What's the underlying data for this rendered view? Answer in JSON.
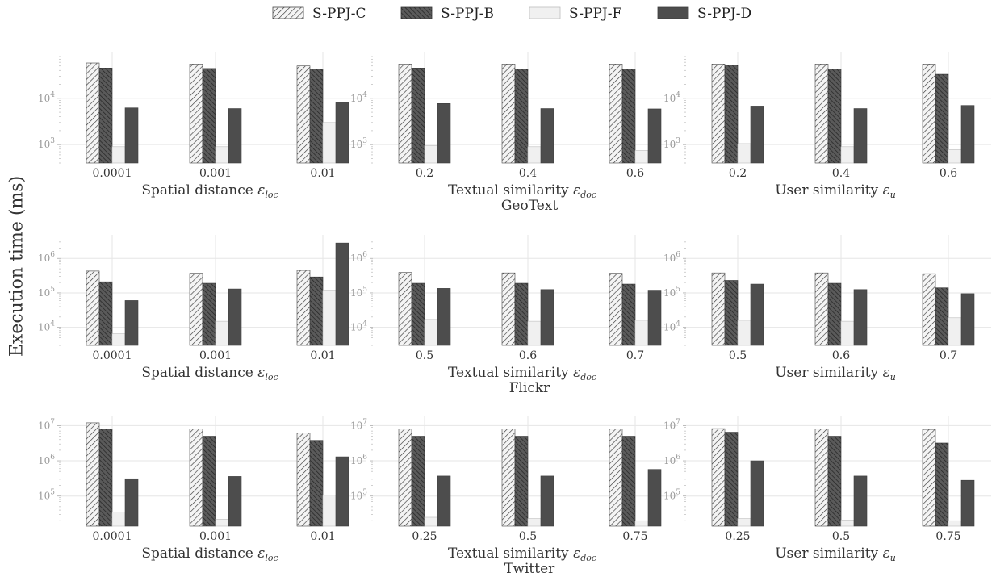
{
  "y_axis_label": "Execution time (ms)",
  "legend": [
    {
      "name": "S-PPJ-C",
      "pattern": "light-hatch"
    },
    {
      "name": "S-PPJ-B",
      "pattern": "dark-hatch"
    },
    {
      "name": "S-PPJ-F",
      "pattern": "light-fill"
    },
    {
      "name": "S-PPJ-D",
      "pattern": "dark-fill"
    }
  ],
  "colors": {
    "s_ppj_c": "#f2f2f2",
    "s_ppj_b": "#555555",
    "s_ppj_f": "#f0f0f0",
    "s_ppj_d": "#4d4d4d",
    "grid": "#e6e6e6",
    "tick_text": "#999999",
    "label_text": "#333333"
  },
  "chart_data": [
    {
      "type": "bar",
      "dataset": "GeoText",
      "xlabel": "Spatial distance ε_loc",
      "xlabel_parts": [
        "Spatial distance ",
        "ε",
        "loc"
      ],
      "yscale": "log",
      "ylim": [
        400,
        80000
      ],
      "yticks": [
        {
          "v": 1000,
          "b": "10",
          "e": "3"
        },
        {
          "v": 10000,
          "b": "10",
          "e": "4"
        }
      ],
      "categories": [
        "0.0001",
        "0.001",
        "0.01"
      ],
      "series": [
        {
          "name": "S-PPJ-C",
          "values": [
            58000,
            55000,
            50000
          ]
        },
        {
          "name": "S-PPJ-B",
          "values": [
            45000,
            44000,
            43000
          ]
        },
        {
          "name": "S-PPJ-F",
          "values": [
            900,
            900,
            3000
          ]
        },
        {
          "name": "S-PPJ-D",
          "values": [
            6200,
            6000,
            8000
          ]
        }
      ]
    },
    {
      "type": "bar",
      "dataset": "GeoText",
      "xlabel": "Textual similarity ε_doc",
      "xlabel_parts": [
        "Textual similarity ",
        "ε",
        "doc"
      ],
      "yscale": "log",
      "ylim": [
        400,
        80000
      ],
      "yticks": [
        {
          "v": 1000,
          "b": "10",
          "e": "3"
        },
        {
          "v": 10000,
          "b": "10",
          "e": "4"
        }
      ],
      "categories": [
        "0.2",
        "0.4",
        "0.6"
      ],
      "series": [
        {
          "name": "S-PPJ-C",
          "values": [
            55000,
            55000,
            55000
          ]
        },
        {
          "name": "S-PPJ-B",
          "values": [
            45000,
            43000,
            43000
          ]
        },
        {
          "name": "S-PPJ-F",
          "values": [
            950,
            900,
            750
          ]
        },
        {
          "name": "S-PPJ-D",
          "values": [
            7700,
            6000,
            5900
          ]
        }
      ]
    },
    {
      "type": "bar",
      "dataset": "GeoText",
      "xlabel": "User similarity ε_u",
      "xlabel_parts": [
        "User similarity ",
        "ε",
        "u"
      ],
      "yscale": "log",
      "ylim": [
        400,
        80000
      ],
      "yticks": [
        {
          "v": 1000,
          "b": "10",
          "e": "3"
        },
        {
          "v": 10000,
          "b": "10",
          "e": "4"
        }
      ],
      "categories": [
        "0.2",
        "0.4",
        "0.6"
      ],
      "series": [
        {
          "name": "S-PPJ-C",
          "values": [
            55000,
            55000,
            55000
          ]
        },
        {
          "name": "S-PPJ-B",
          "values": [
            52000,
            43000,
            33000
          ]
        },
        {
          "name": "S-PPJ-F",
          "values": [
            1050,
            900,
            780
          ]
        },
        {
          "name": "S-PPJ-D",
          "values": [
            6800,
            6000,
            7000
          ]
        }
      ]
    },
    {
      "type": "bar",
      "dataset": "Flickr",
      "xlabel": "Spatial distance ε_loc",
      "xlabel_parts": [
        "Spatial distance ",
        "ε",
        "loc"
      ],
      "yscale": "log",
      "ylim": [
        3000,
        3500000
      ],
      "yticks": [
        {
          "v": 10000,
          "b": "10",
          "e": "4"
        },
        {
          "v": 100000,
          "b": "10",
          "e": "5"
        },
        {
          "v": 1000000,
          "b": "10",
          "e": "6"
        }
      ],
      "categories": [
        "0.0001",
        "0.001",
        "0.01"
      ],
      "series": [
        {
          "name": "S-PPJ-C",
          "values": [
            430000,
            370000,
            450000
          ]
        },
        {
          "name": "S-PPJ-B",
          "values": [
            210000,
            190000,
            290000
          ]
        },
        {
          "name": "S-PPJ-F",
          "values": [
            6500,
            15000,
            120000
          ]
        },
        {
          "name": "S-PPJ-D",
          "values": [
            60000,
            130000,
            2800000
          ]
        }
      ]
    },
    {
      "type": "bar",
      "dataset": "Flickr",
      "xlabel": "Textual similarity ε_doc",
      "xlabel_parts": [
        "Textual similarity ",
        "ε",
        "doc"
      ],
      "yscale": "log",
      "ylim": [
        3000,
        3500000
      ],
      "yticks": [
        {
          "v": 10000,
          "b": "10",
          "e": "4"
        },
        {
          "v": 100000,
          "b": "10",
          "e": "5"
        },
        {
          "v": 1000000,
          "b": "10",
          "e": "6"
        }
      ],
      "categories": [
        "0.5",
        "0.6",
        "0.7"
      ],
      "series": [
        {
          "name": "S-PPJ-C",
          "values": [
            390000,
            380000,
            370000
          ]
        },
        {
          "name": "S-PPJ-B",
          "values": [
            190000,
            190000,
            180000
          ]
        },
        {
          "name": "S-PPJ-F",
          "values": [
            17000,
            15000,
            16000
          ]
        },
        {
          "name": "S-PPJ-D",
          "values": [
            135000,
            125000,
            120000
          ]
        }
      ]
    },
    {
      "type": "bar",
      "dataset": "Flickr",
      "xlabel": "User similarity ε_u",
      "xlabel_parts": [
        "User similarity ",
        "ε",
        "u"
      ],
      "yscale": "log",
      "ylim": [
        3000,
        3500000
      ],
      "yticks": [
        {
          "v": 10000,
          "b": "10",
          "e": "4"
        },
        {
          "v": 100000,
          "b": "10",
          "e": "5"
        },
        {
          "v": 1000000,
          "b": "10",
          "e": "6"
        }
      ],
      "categories": [
        "0.5",
        "0.6",
        "0.7"
      ],
      "series": [
        {
          "name": "S-PPJ-C",
          "values": [
            380000,
            380000,
            360000
          ]
        },
        {
          "name": "S-PPJ-B",
          "values": [
            230000,
            190000,
            140000
          ]
        },
        {
          "name": "S-PPJ-F",
          "values": [
            16000,
            15000,
            19000
          ]
        },
        {
          "name": "S-PPJ-D",
          "values": [
            180000,
            125000,
            95000
          ]
        }
      ]
    },
    {
      "type": "bar",
      "dataset": "Twitter",
      "xlabel": "Spatial distance ε_loc",
      "xlabel_parts": [
        "Spatial distance ",
        "ε",
        "loc"
      ],
      "yscale": "log",
      "ylim": [
        14000,
        14000000
      ],
      "yticks": [
        {
          "v": 100000,
          "b": "10",
          "e": "5"
        },
        {
          "v": 1000000,
          "b": "10",
          "e": "6"
        },
        {
          "v": 10000000,
          "b": "10",
          "e": "7"
        }
      ],
      "categories": [
        "0.0001",
        "0.001",
        "0.01"
      ],
      "series": [
        {
          "name": "S-PPJ-C",
          "values": [
            12000000,
            8000000,
            6200000
          ]
        },
        {
          "name": "S-PPJ-B",
          "values": [
            8000000,
            5000000,
            3800000
          ]
        },
        {
          "name": "S-PPJ-F",
          "values": [
            35000,
            22000,
            105000
          ]
        },
        {
          "name": "S-PPJ-D",
          "values": [
            310000,
            360000,
            1300000
          ]
        }
      ]
    },
    {
      "type": "bar",
      "dataset": "Twitter",
      "xlabel": "Textual similarity ε_doc",
      "xlabel_parts": [
        "Textual similarity ",
        "ε",
        "doc"
      ],
      "yscale": "log",
      "ylim": [
        14000,
        14000000
      ],
      "yticks": [
        {
          "v": 100000,
          "b": "10",
          "e": "5"
        },
        {
          "v": 1000000,
          "b": "10",
          "e": "6"
        },
        {
          "v": 10000000,
          "b": "10",
          "e": "7"
        }
      ],
      "categories": [
        "0.25",
        "0.5",
        "0.75"
      ],
      "series": [
        {
          "name": "S-PPJ-C",
          "values": [
            8000000,
            8000000,
            8000000
          ]
        },
        {
          "name": "S-PPJ-B",
          "values": [
            5000000,
            5000000,
            5000000
          ]
        },
        {
          "name": "S-PPJ-F",
          "values": [
            25000,
            23000,
            20000
          ]
        },
        {
          "name": "S-PPJ-D",
          "values": [
            370000,
            370000,
            570000
          ]
        }
      ]
    },
    {
      "type": "bar",
      "dataset": "Twitter",
      "xlabel": "User similarity ε_u",
      "xlabel_parts": [
        "User similarity ",
        "ε",
        "u"
      ],
      "yscale": "log",
      "ylim": [
        14000,
        14000000
      ],
      "yticks": [
        {
          "v": 100000,
          "b": "10",
          "e": "5"
        },
        {
          "v": 1000000,
          "b": "10",
          "e": "6"
        },
        {
          "v": 10000000,
          "b": "10",
          "e": "7"
        }
      ],
      "categories": [
        "0.25",
        "0.5",
        "0.75"
      ],
      "series": [
        {
          "name": "S-PPJ-C",
          "values": [
            8200000,
            8000000,
            7800000
          ]
        },
        {
          "name": "S-PPJ-B",
          "values": [
            6500000,
            5000000,
            3200000
          ]
        },
        {
          "name": "S-PPJ-F",
          "values": [
            23000,
            21000,
            20000
          ]
        },
        {
          "name": "S-PPJ-D",
          "values": [
            1000000,
            370000,
            280000
          ]
        }
      ]
    }
  ],
  "row_labels": [
    "GeoText",
    "Flickr",
    "Twitter"
  ]
}
